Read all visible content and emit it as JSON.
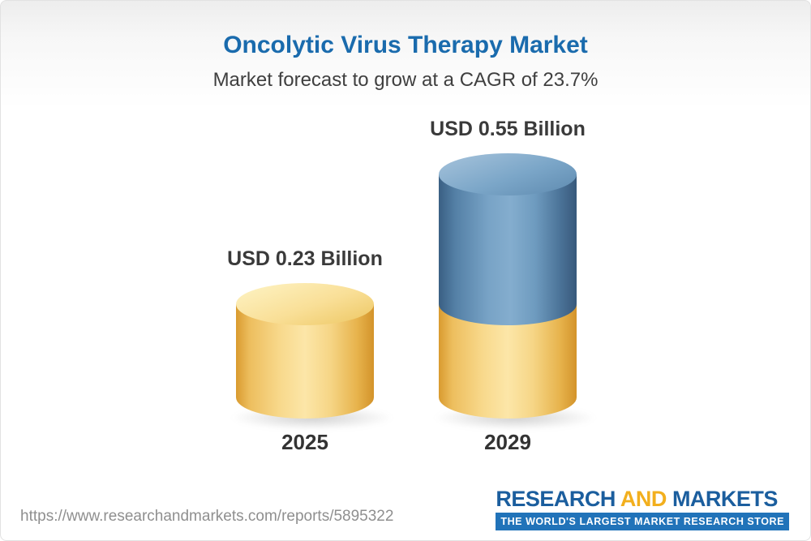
{
  "header": {
    "title": "Oncolytic Virus Therapy Market",
    "subtitle": "Market forecast to grow at a CAGR of 23.7%"
  },
  "chart_data": {
    "type": "bar",
    "variant": "3d-cylinder",
    "title": "Oncolytic Virus Therapy Market",
    "subtitle": "Market forecast to grow at a CAGR of 23.7%",
    "unit": "USD Billion",
    "cagr_percent": 23.7,
    "categories": [
      "2025",
      "2029"
    ],
    "values": [
      0.23,
      0.55
    ],
    "value_labels": [
      "USD 0.23 Billion",
      "USD 0.55 Billion"
    ],
    "bars": [
      {
        "category": "2025",
        "total": 0.23,
        "segments": [
          {
            "color_key": "gold",
            "value": 0.23
          }
        ]
      },
      {
        "category": "2029",
        "total": 0.55,
        "segments": [
          {
            "color_key": "gold",
            "value": 0.23
          },
          {
            "color_key": "blue",
            "value": 0.32
          }
        ]
      }
    ],
    "colors": {
      "gold": "#f2c765",
      "blue": "#5585ad",
      "title_blue": "#1a6bad"
    },
    "xlabel": "",
    "ylabel": "",
    "axes_visible": false,
    "grid": false,
    "legend": "none"
  },
  "footer": {
    "url": "https://www.researchandmarkets.com/reports/5895322",
    "logo": {
      "word1": "RESEARCH",
      "word2": "AND",
      "word3": "MARKETS",
      "tagline": "THE WORLD'S LARGEST MARKET RESEARCH STORE"
    }
  }
}
